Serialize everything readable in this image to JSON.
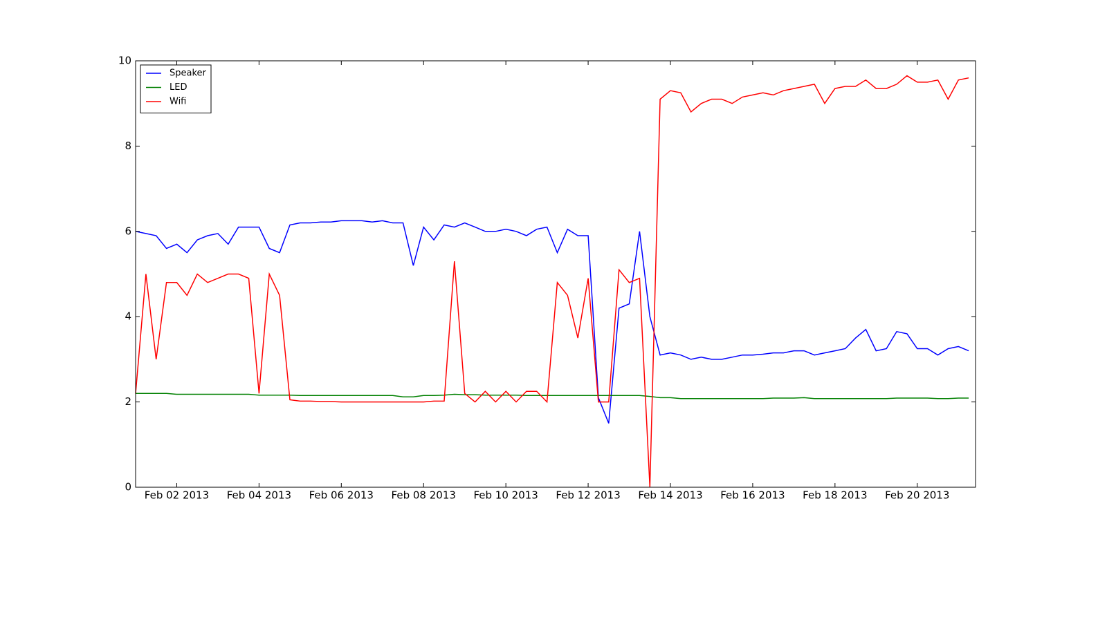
{
  "chart_data": {
    "type": "line",
    "x": [
      "2013-02-01 00:00",
      "2013-02-01 06:00",
      "2013-02-01 12:00",
      "2013-02-01 18:00",
      "2013-02-02 00:00",
      "2013-02-02 06:00",
      "2013-02-02 12:00",
      "2013-02-02 18:00",
      "2013-02-03 00:00",
      "2013-02-03 06:00",
      "2013-02-03 12:00",
      "2013-02-03 18:00",
      "2013-02-04 00:00",
      "2013-02-04 06:00",
      "2013-02-04 12:00",
      "2013-02-04 18:00",
      "2013-02-05 00:00",
      "2013-02-05 06:00",
      "2013-02-05 12:00",
      "2013-02-05 18:00",
      "2013-02-06 00:00",
      "2013-02-06 06:00",
      "2013-02-06 12:00",
      "2013-02-06 18:00",
      "2013-02-07 00:00",
      "2013-02-07 06:00",
      "2013-02-07 12:00",
      "2013-02-07 18:00",
      "2013-02-08 00:00",
      "2013-02-08 06:00",
      "2013-02-08 12:00",
      "2013-02-08 18:00",
      "2013-02-09 00:00",
      "2013-02-09 06:00",
      "2013-02-09 12:00",
      "2013-02-09 18:00",
      "2013-02-10 00:00",
      "2013-02-10 06:00",
      "2013-02-10 12:00",
      "2013-02-10 18:00",
      "2013-02-11 00:00",
      "2013-02-11 06:00",
      "2013-02-11 12:00",
      "2013-02-11 18:00",
      "2013-02-12 00:00",
      "2013-02-12 06:00",
      "2013-02-12 12:00",
      "2013-02-12 18:00",
      "2013-02-13 00:00",
      "2013-02-13 06:00",
      "2013-02-13 12:00",
      "2013-02-13 18:00",
      "2013-02-14 00:00",
      "2013-02-14 06:00",
      "2013-02-14 12:00",
      "2013-02-14 18:00",
      "2013-02-15 00:00",
      "2013-02-15 06:00",
      "2013-02-15 12:00",
      "2013-02-15 18:00",
      "2013-02-16 00:00",
      "2013-02-16 06:00",
      "2013-02-16 12:00",
      "2013-02-16 18:00",
      "2013-02-17 00:00",
      "2013-02-17 06:00",
      "2013-02-17 12:00",
      "2013-02-17 18:00",
      "2013-02-18 00:00",
      "2013-02-18 06:00",
      "2013-02-18 12:00",
      "2013-02-18 18:00",
      "2013-02-19 00:00",
      "2013-02-19 06:00",
      "2013-02-19 12:00",
      "2013-02-19 18:00",
      "2013-02-20 00:00",
      "2013-02-20 06:00",
      "2013-02-20 12:00",
      "2013-02-20 18:00",
      "2013-02-21 00:00",
      "2013-02-21 06:00"
    ],
    "series": [
      {
        "name": "Speaker",
        "color": "#0000ff",
        "values": [
          6.0,
          5.95,
          5.9,
          5.6,
          5.7,
          5.5,
          5.8,
          5.9,
          5.95,
          5.7,
          6.1,
          6.1,
          6.1,
          5.6,
          5.5,
          6.15,
          6.2,
          6.2,
          6.22,
          6.22,
          6.25,
          6.25,
          6.25,
          6.22,
          6.25,
          6.2,
          6.2,
          5.2,
          6.1,
          5.8,
          6.15,
          6.1,
          6.2,
          6.1,
          6.0,
          6.0,
          6.05,
          6.0,
          5.9,
          6.05,
          6.1,
          5.5,
          6.05,
          5.9,
          5.9,
          2.1,
          1.5,
          4.2,
          4.3,
          6.0,
          4.0,
          3.1,
          3.15,
          3.1,
          3.0,
          3.05,
          3.0,
          3.0,
          3.05,
          3.1,
          3.1,
          3.12,
          3.15,
          3.15,
          3.2,
          3.2,
          3.1,
          3.15,
          3.2,
          3.25,
          3.5,
          3.7,
          3.2,
          3.25,
          3.65,
          3.6,
          3.25,
          3.25,
          3.1,
          3.25,
          3.3,
          3.2
        ]
      },
      {
        "name": "LED",
        "color": "#008000",
        "values": [
          2.2,
          2.2,
          2.2,
          2.2,
          2.18,
          2.18,
          2.18,
          2.18,
          2.18,
          2.18,
          2.18,
          2.18,
          2.16,
          2.16,
          2.16,
          2.16,
          2.15,
          2.15,
          2.15,
          2.15,
          2.15,
          2.15,
          2.15,
          2.15,
          2.15,
          2.15,
          2.12,
          2.12,
          2.15,
          2.15,
          2.16,
          2.18,
          2.17,
          2.17,
          2.16,
          2.16,
          2.16,
          2.16,
          2.15,
          2.15,
          2.15,
          2.15,
          2.15,
          2.15,
          2.15,
          2.15,
          2.15,
          2.15,
          2.15,
          2.15,
          2.13,
          2.1,
          2.1,
          2.08,
          2.08,
          2.08,
          2.08,
          2.08,
          2.08,
          2.08,
          2.08,
          2.08,
          2.09,
          2.09,
          2.09,
          2.1,
          2.08,
          2.08,
          2.08,
          2.08,
          2.08,
          2.08,
          2.08,
          2.08,
          2.09,
          2.09,
          2.09,
          2.09,
          2.08,
          2.08,
          2.09,
          2.09
        ]
      },
      {
        "name": "Wifi",
        "color": "#ff0000",
        "values": [
          2.2,
          5.0,
          3.0,
          4.8,
          4.8,
          4.5,
          5.0,
          4.8,
          4.9,
          5.0,
          5.0,
          4.9,
          2.2,
          5.0,
          4.5,
          2.05,
          2.02,
          2.02,
          2.01,
          2.01,
          2.0,
          2.0,
          2.0,
          2.0,
          2.0,
          2.0,
          2.0,
          2.0,
          2.0,
          2.02,
          2.02,
          5.3,
          2.2,
          2.0,
          2.25,
          2.0,
          2.25,
          2.0,
          2.25,
          2.25,
          2.0,
          4.8,
          4.5,
          3.5,
          4.9,
          2.0,
          2.0,
          5.1,
          4.8,
          4.9,
          0.0,
          9.1,
          9.3,
          9.25,
          8.8,
          9.0,
          9.1,
          9.1,
          9.0,
          9.15,
          9.2,
          9.25,
          9.2,
          9.3,
          9.35,
          9.4,
          9.45,
          9.0,
          9.35,
          9.4,
          9.4,
          9.55,
          9.35,
          9.35,
          9.45,
          9.65,
          9.5,
          9.5,
          9.55,
          9.1,
          9.55,
          9.6
        ]
      }
    ],
    "xlim": [
      "2013-02-01 00:00",
      "2013-02-21 10:00"
    ],
    "xticks": [
      {
        "value": "2013-02-02 00:00",
        "label": "Feb 02 2013"
      },
      {
        "value": "2013-02-04 00:00",
        "label": "Feb 04 2013"
      },
      {
        "value": "2013-02-06 00:00",
        "label": "Feb 06 2013"
      },
      {
        "value": "2013-02-08 00:00",
        "label": "Feb 08 2013"
      },
      {
        "value": "2013-02-10 00:00",
        "label": "Feb 10 2013"
      },
      {
        "value": "2013-02-12 00:00",
        "label": "Feb 12 2013"
      },
      {
        "value": "2013-02-14 00:00",
        "label": "Feb 14 2013"
      },
      {
        "value": "2013-02-16 00:00",
        "label": "Feb 16 2013"
      },
      {
        "value": "2013-02-18 00:00",
        "label": "Feb 18 2013"
      },
      {
        "value": "2013-02-20 00:00",
        "label": "Feb 20 2013"
      }
    ],
    "ylim": [
      0,
      10
    ],
    "yticks": [
      0,
      2,
      4,
      6,
      8,
      10
    ],
    "legend": "upper left"
  }
}
